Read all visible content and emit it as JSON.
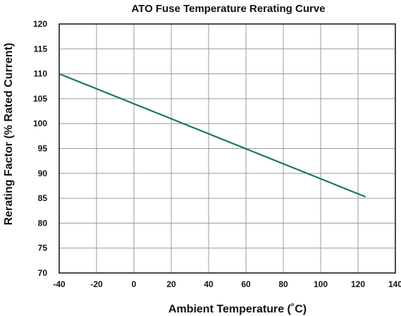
{
  "chart_data": {
    "type": "line",
    "title": "ATO Fuse Temperature Rerating Curve",
    "xlabel": "Ambient Temperature (˚C)",
    "ylabel": "Rerating Factor (% Rated Current)",
    "xlim": [
      -40,
      140
    ],
    "ylim": [
      70,
      120
    ],
    "x_ticks": [
      "-40",
      "-20",
      "0",
      "20",
      "40",
      "60",
      "80",
      "100",
      "120",
      "140"
    ],
    "y_ticks": [
      "70",
      "75",
      "80",
      "85",
      "90",
      "95",
      "100",
      "105",
      "110",
      "115",
      "120"
    ],
    "grid": true,
    "series": [
      {
        "x": [
          -40,
          124
        ],
        "y": [
          110,
          85.3
        ],
        "color": "#1e7a4c"
      }
    ]
  }
}
